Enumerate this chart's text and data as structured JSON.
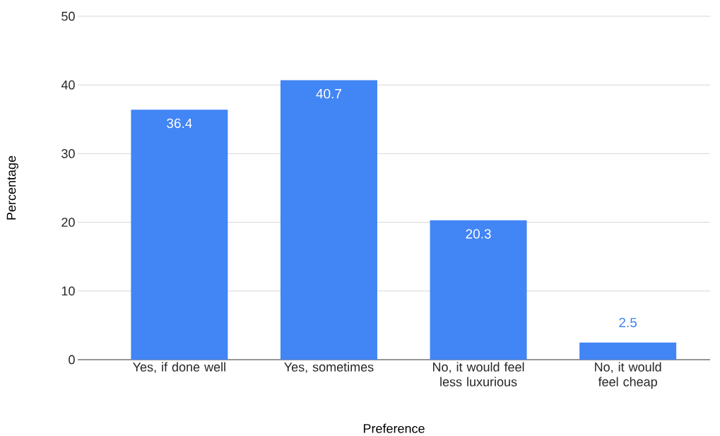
{
  "chart_data": {
    "type": "bar",
    "xlabel": "Preference",
    "ylabel": "Percentage",
    "categories": [
      "Yes, if done well",
      "Yes, sometimes",
      "No, it would feel less luxurious",
      "No, it would feel cheap"
    ],
    "values": [
      36.4,
      40.7,
      20.3,
      2.5
    ],
    "color": "#4285f4",
    "ylim": [
      0,
      50
    ],
    "yticks": [
      0,
      10,
      20,
      30,
      40,
      50
    ],
    "grid": "y",
    "data_labels": true
  }
}
